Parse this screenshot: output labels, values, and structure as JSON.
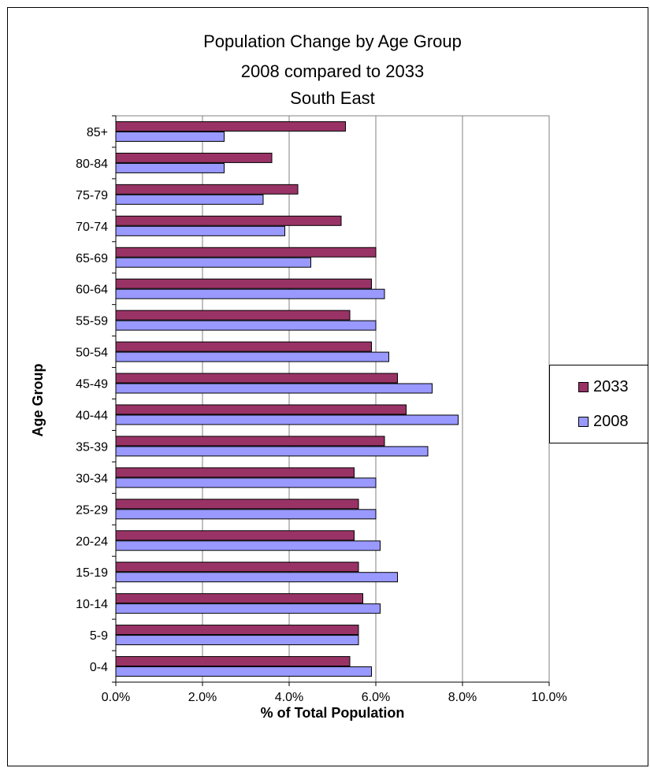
{
  "chart_data": {
    "type": "bar",
    "orientation": "horizontal",
    "title": [
      "Population Change by Age Group",
      "2008 compared to 2033",
      "South East"
    ],
    "xlabel": "% of Total Population",
    "ylabel": "Age Group",
    "xlim": [
      0,
      10
    ],
    "xticks": [
      "0.0%",
      "2.0%",
      "4.0%",
      "6.0%",
      "8.0%",
      "10.0%"
    ],
    "grid": "vertical",
    "legend_position": "right",
    "categories": [
      "85+",
      "80-84",
      "75-79",
      "70-74",
      "65-69",
      "60-64",
      "55-59",
      "50-54",
      "45-49",
      "40-44",
      "35-39",
      "30-34",
      "25-29",
      "20-24",
      "15-19",
      "10-14",
      "5-9",
      "0-4"
    ],
    "series": [
      {
        "name": "2033",
        "color": "#993366",
        "values": [
          5.3,
          3.6,
          4.2,
          5.2,
          6.0,
          5.9,
          5.4,
          5.9,
          6.5,
          6.7,
          6.2,
          5.5,
          5.6,
          5.5,
          5.6,
          5.7,
          5.6,
          5.4
        ]
      },
      {
        "name": "2008",
        "color": "#9999ff",
        "values": [
          2.5,
          2.5,
          3.4,
          3.9,
          4.5,
          6.2,
          6.0,
          6.3,
          7.3,
          7.9,
          7.2,
          6.0,
          6.0,
          6.1,
          6.5,
          6.1,
          5.6,
          5.9
        ]
      }
    ]
  }
}
